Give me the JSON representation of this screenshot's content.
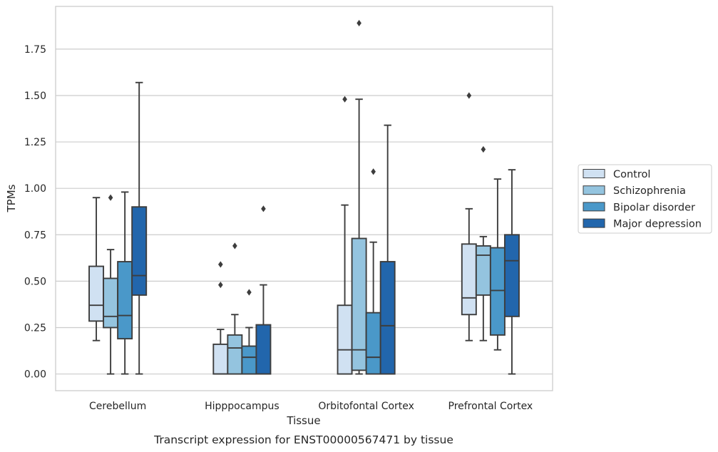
{
  "caption": "Transcript expression for ENST00000567471 by tissue",
  "chart_data": {
    "type": "box",
    "xlabel": "Tissue",
    "ylabel": "TPMs",
    "ylim": [
      -0.09,
      1.98
    ],
    "yticks": [
      "0.00",
      "0.25",
      "0.50",
      "0.75",
      "1.00",
      "1.25",
      "1.50",
      "1.75"
    ],
    "grid": "horizontal",
    "legend_placement": "center-right",
    "categories": [
      "Cerebellum",
      "Hipppocampus",
      "Orbitofontal Cortex",
      "Prefrontal Cortex"
    ],
    "series": [
      {
        "name": "Control",
        "color": "#d0e1f2",
        "boxes": [
          {
            "whislo": 0.18,
            "q1": 0.285,
            "med": 0.37,
            "q3": 0.58,
            "whishi": 0.95,
            "fliers": []
          },
          {
            "whislo": 0.0,
            "q1": 0.0,
            "med": 0.0,
            "q3": 0.16,
            "whishi": 0.24,
            "fliers": [
              0.48,
              0.59
            ]
          },
          {
            "whislo": 0.0,
            "q1": 0.0,
            "med": 0.13,
            "q3": 0.37,
            "whishi": 0.91,
            "fliers": [
              1.48
            ]
          },
          {
            "whislo": 0.18,
            "q1": 0.32,
            "med": 0.41,
            "q3": 0.7,
            "whishi": 0.89,
            "fliers": [
              1.5
            ]
          }
        ]
      },
      {
        "name": "Schizophrenia",
        "color": "#94c4df",
        "boxes": [
          {
            "whislo": 0.0,
            "q1": 0.25,
            "med": 0.31,
            "q3": 0.515,
            "whishi": 0.67,
            "fliers": [
              0.95
            ]
          },
          {
            "whislo": 0.0,
            "q1": 0.0,
            "med": 0.14,
            "q3": 0.21,
            "whishi": 0.32,
            "fliers": [
              0.69
            ]
          },
          {
            "whislo": 0.0,
            "q1": 0.02,
            "med": 0.13,
            "q3": 0.73,
            "whishi": 1.48,
            "fliers": [
              1.89
            ]
          },
          {
            "whislo": 0.18,
            "q1": 0.425,
            "med": 0.64,
            "q3": 0.69,
            "whishi": 0.74,
            "fliers": [
              1.21
            ]
          }
        ]
      },
      {
        "name": "Bipolar disorder",
        "color": "#4a98c9",
        "boxes": [
          {
            "whislo": 0.0,
            "q1": 0.19,
            "med": 0.315,
            "q3": 0.605,
            "whishi": 0.98,
            "fliers": []
          },
          {
            "whislo": 0.0,
            "q1": 0.0,
            "med": 0.09,
            "q3": 0.15,
            "whishi": 0.25,
            "fliers": [
              0.44
            ]
          },
          {
            "whislo": 0.0,
            "q1": 0.0,
            "med": 0.09,
            "q3": 0.33,
            "whishi": 0.71,
            "fliers": [
              1.09
            ]
          },
          {
            "whislo": 0.13,
            "q1": 0.21,
            "med": 0.45,
            "q3": 0.68,
            "whishi": 1.05,
            "fliers": []
          }
        ]
      },
      {
        "name": "Major depression",
        "color": "#2266ac",
        "boxes": [
          {
            "whislo": 0.0,
            "q1": 0.425,
            "med": 0.53,
            "q3": 0.9,
            "whishi": 1.57,
            "fliers": []
          },
          {
            "whislo": 0.0,
            "q1": 0.0,
            "med": 0.0,
            "q3": 0.265,
            "whishi": 0.48,
            "fliers": [
              0.89
            ]
          },
          {
            "whislo": 0.0,
            "q1": 0.0,
            "med": 0.26,
            "q3": 0.605,
            "whishi": 1.34,
            "fliers": []
          },
          {
            "whislo": 0.0,
            "q1": 0.31,
            "med": 0.61,
            "q3": 0.75,
            "whishi": 1.1,
            "fliers": []
          }
        ]
      }
    ]
  }
}
